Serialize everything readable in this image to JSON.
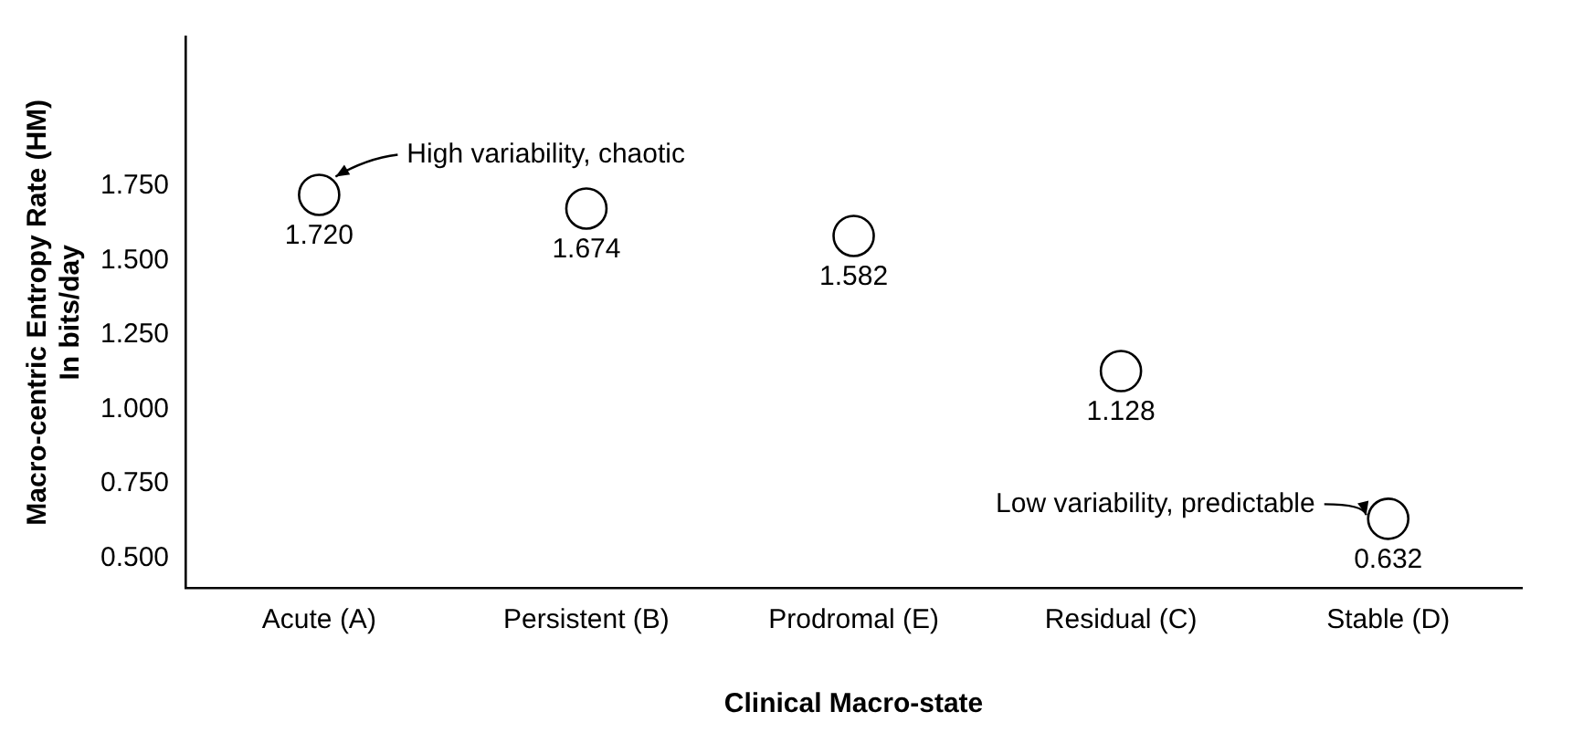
{
  "chart_data": {
    "type": "scatter",
    "xlabel": "Clinical Macro-state",
    "ylabel": "Macro-centric Entropy Rate (HM)\nIn bits/day",
    "categories": [
      "Acute (A)",
      "Persistent (B)",
      "Prodromal (E)",
      "Residual (C)",
      "Stable (D)"
    ],
    "series": [
      {
        "color": "#000000",
        "values": [
          1.72,
          1.674,
          1.582,
          1.128,
          0.632
        ],
        "value_labels": [
          "1.720",
          "1.674",
          "1.582",
          "1.128",
          "0.632"
        ]
      }
    ],
    "ylim": [
      0.4,
      2.25
    ],
    "yticks": [
      {
        "value": 0.5,
        "label": "0.500"
      },
      {
        "value": 0.75,
        "label": "0.750"
      },
      {
        "value": 1,
        "label": "1.000"
      },
      {
        "value": 1.25,
        "label": "1.250"
      },
      {
        "value": 1.5,
        "label": "1.500"
      },
      {
        "value": 1.75,
        "label": "1.750"
      }
    ],
    "grid": false,
    "legend": false,
    "marker": "circle",
    "annotations": [
      "High variability, chaotic",
      "Low variability, predictable"
    ]
  }
}
